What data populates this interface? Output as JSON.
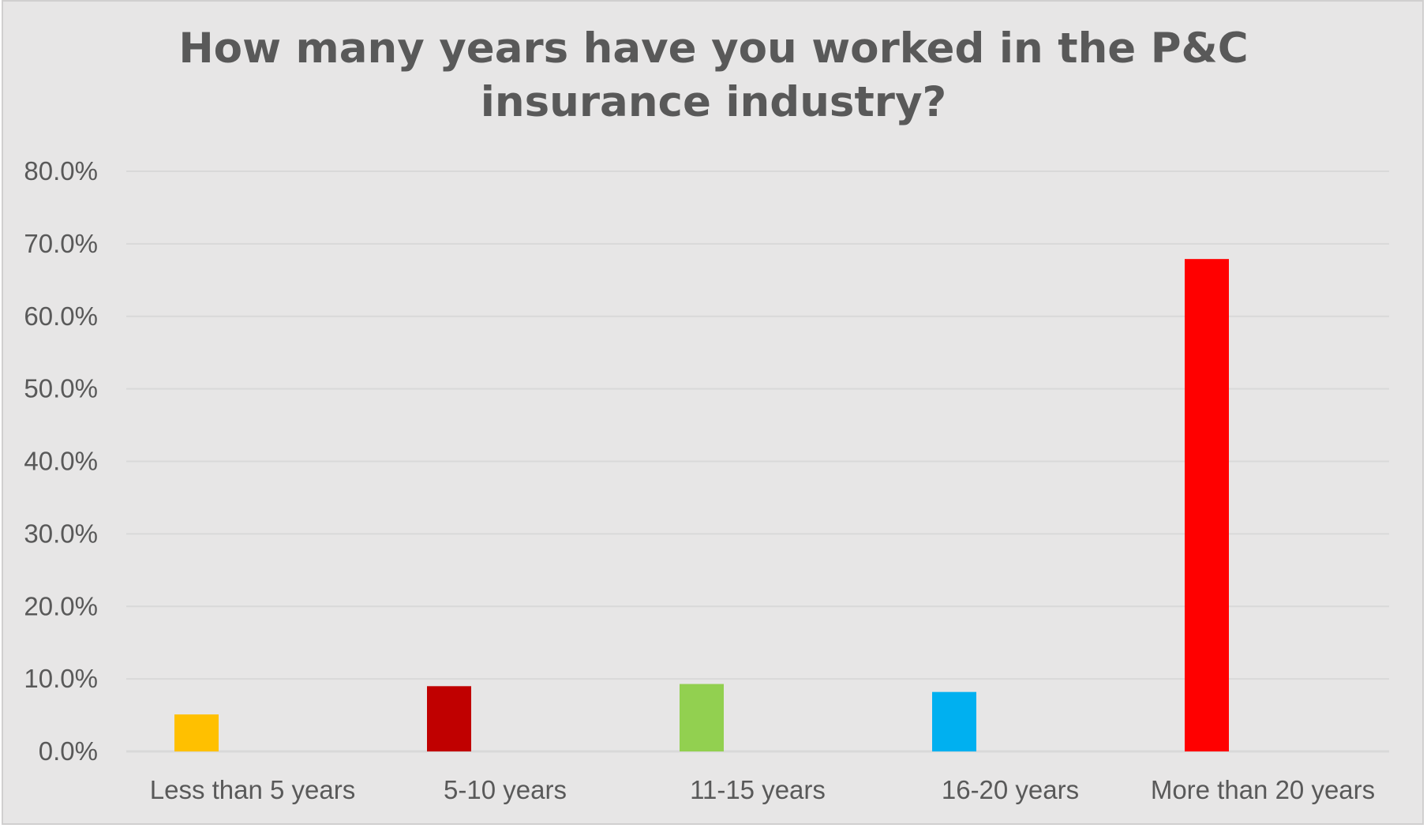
{
  "chart_data": {
    "type": "bar",
    "title": "How many years have you worked in the P&C\ninsurance industry?",
    "xlabel": "",
    "ylabel": "",
    "categories": [
      "Less than 5 years",
      "5-10 years",
      "11-15 years",
      "16-20 years",
      "More than 20 years"
    ],
    "values": [
      5.1,
      9.0,
      9.3,
      8.2,
      67.9
    ],
    "value_unit": "%",
    "ylim": [
      0,
      80
    ],
    "yticks": [
      0,
      10,
      20,
      30,
      40,
      50,
      60,
      70,
      80
    ],
    "ytick_labels": [
      "0.0%",
      "10.0%",
      "20.0%",
      "30.0%",
      "40.0%",
      "50.0%",
      "60.0%",
      "70.0%",
      "80.0%"
    ],
    "bar_colors": [
      "#ffc000",
      "#c00000",
      "#92d050",
      "#00b0f0",
      "#ff0000"
    ],
    "grid": true,
    "legend": "none",
    "background": "#e7e6e6",
    "gridline_color": "#d9d9d9",
    "text_color": "#595959"
  }
}
